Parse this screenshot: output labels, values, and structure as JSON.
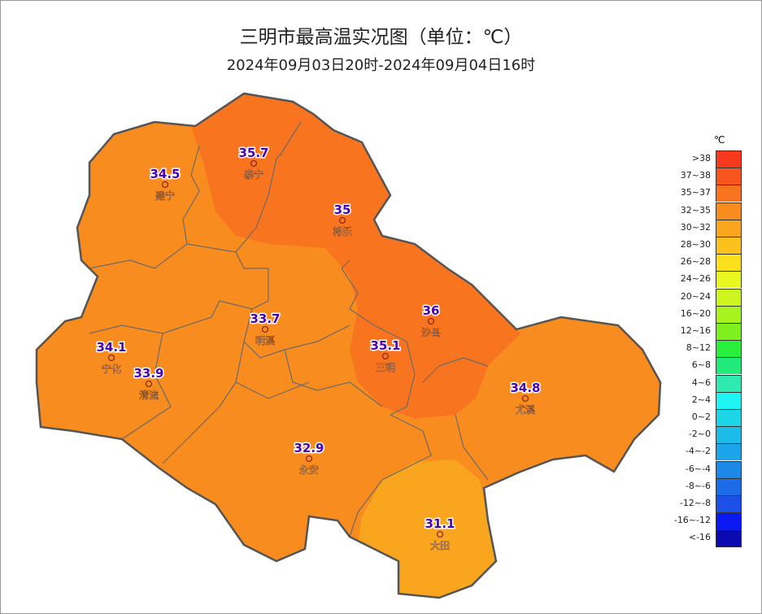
{
  "title": "三明市最高温实况图（单位：℃）",
  "subtitle": "2024年09月03日20时-2024年09月04日16时",
  "legend": {
    "unit": "℃",
    "items": [
      {
        "label": ">38",
        "color": "#f83a1c"
      },
      {
        "label": "37~38",
        "color": "#f8561e"
      },
      {
        "label": "35~37",
        "color": "#f8741f"
      },
      {
        "label": "32~35",
        "color": "#f98c1e"
      },
      {
        "label": "30~32",
        "color": "#f9a51e"
      },
      {
        "label": "28~30",
        "color": "#fbc21e"
      },
      {
        "label": "26~28",
        "color": "#fbe01c"
      },
      {
        "label": "24~26",
        "color": "#e8f81e"
      },
      {
        "label": "20~24",
        "color": "#cdf51e"
      },
      {
        "label": "16~20",
        "color": "#a6f31e"
      },
      {
        "label": "12~16",
        "color": "#7ef01e"
      },
      {
        "label": "8~12",
        "color": "#28ee3c"
      },
      {
        "label": "6~8",
        "color": "#20ea7a"
      },
      {
        "label": "4~6",
        "color": "#2eeab0"
      },
      {
        "label": "2~4",
        "color": "#1ef4f4"
      },
      {
        "label": "0~2",
        "color": "#1cd6e8"
      },
      {
        "label": "-2~0",
        "color": "#1cbce8"
      },
      {
        "label": "-4~-2",
        "color": "#1ca4e8"
      },
      {
        "label": "-6~-4",
        "color": "#1c88e8"
      },
      {
        "label": "-8~-6",
        "color": "#1c6ce8"
      },
      {
        "label": "-12~-8",
        "color": "#1c50e8"
      },
      {
        "label": "-16~-12",
        "color": "#0a18f4"
      },
      {
        "label": "<-16",
        "color": "#0a0ab0"
      }
    ]
  },
  "stations": [
    {
      "name": "泰宁",
      "value": "35.7"
    },
    {
      "name": "建宁",
      "value": "34.5"
    },
    {
      "name": "将乐",
      "value": "35"
    },
    {
      "name": "沙县",
      "value": "36"
    },
    {
      "name": "明溪",
      "value": "33.7"
    },
    {
      "name": "宁化",
      "value": "34.1"
    },
    {
      "name": "三明",
      "value": "35.1"
    },
    {
      "name": "清流",
      "value": "33.9"
    },
    {
      "name": "尤溪",
      "value": "34.8"
    },
    {
      "name": "永安",
      "value": "32.9"
    },
    {
      "name": "大田",
      "value": "31.1"
    }
  ]
}
